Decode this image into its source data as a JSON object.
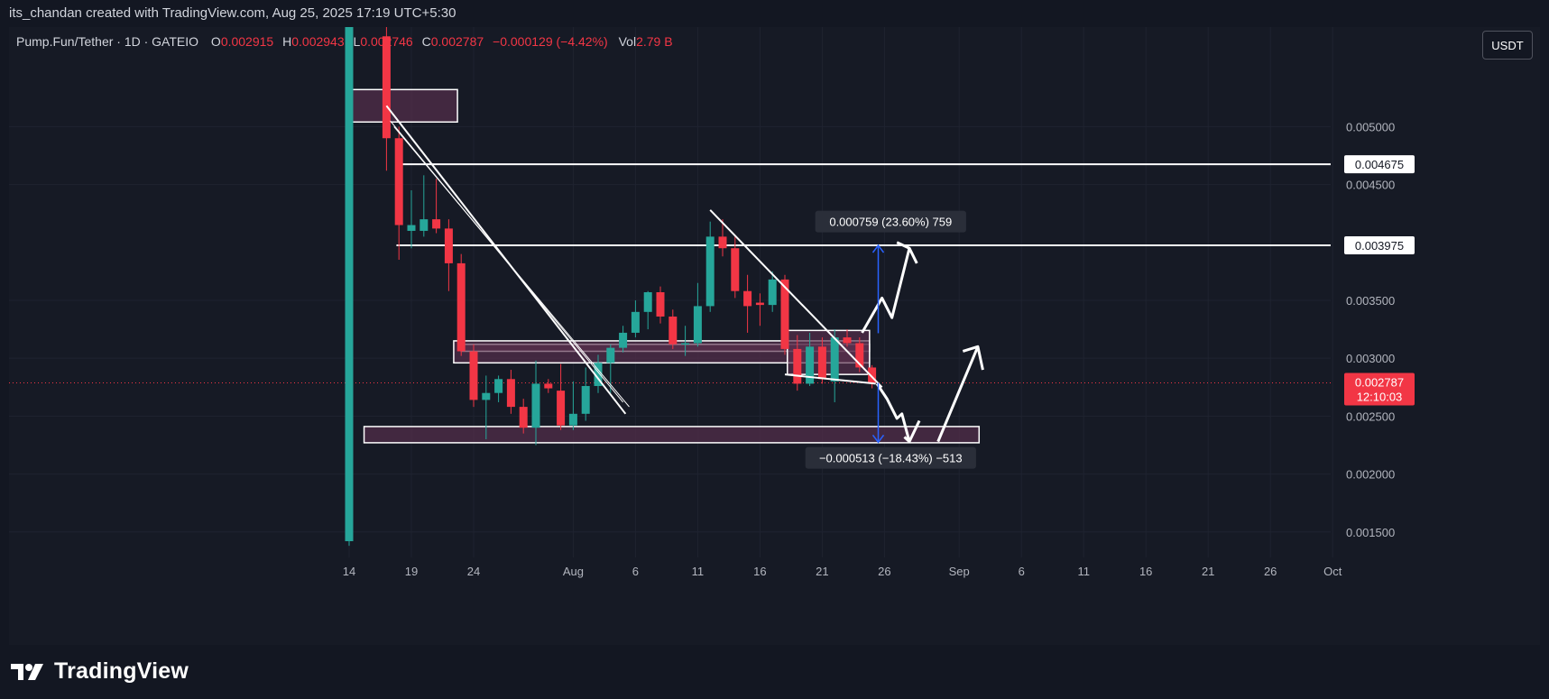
{
  "header": {
    "credit": "its_chandan created with TradingView.com, Aug 25, 2025 17:19 UTC+5:30"
  },
  "legend": {
    "symbol": "Pump.Fun/Tether · 1D · GATEIO",
    "o_label": "O",
    "o_value": "0.002915",
    "h_label": "H",
    "h_value": "0.002943",
    "l_label": "L",
    "l_value": "0.002746",
    "c_label": "C",
    "c_value": "0.002787",
    "change": "−0.000129 (−4.42%)",
    "vol_label": "Vol",
    "vol_value": "2.79 B"
  },
  "currency_button": "USDT",
  "brand": "TradingView",
  "colors": {
    "up": "#26a69a",
    "down": "#f23645",
    "zone": "#5b2f4f",
    "line": "#ffffff",
    "measure": "#2962ff"
  },
  "chart_data": {
    "type": "candlestick",
    "x_ticks": [
      {
        "day": 0,
        "label": "14"
      },
      {
        "day": 5,
        "label": "19"
      },
      {
        "day": 10,
        "label": "24"
      },
      {
        "day": 18,
        "label": "Aug"
      },
      {
        "day": 23,
        "label": "6"
      },
      {
        "day": 28,
        "label": "11"
      },
      {
        "day": 33,
        "label": "16"
      },
      {
        "day": 38,
        "label": "21"
      },
      {
        "day": 43,
        "label": "26"
      },
      {
        "day": 49,
        "label": "Sep"
      },
      {
        "day": 54,
        "label": "6"
      },
      {
        "day": 59,
        "label": "11"
      },
      {
        "day": 64,
        "label": "16"
      },
      {
        "day": 69,
        "label": "21"
      },
      {
        "day": 74,
        "label": "26"
      },
      {
        "day": 79,
        "label": "Oct"
      }
    ],
    "y_ticks": [
      "0.005000",
      "0.004500",
      "0.003500",
      "0.003000",
      "0.002500",
      "0.002000",
      "0.001500"
    ],
    "y_tick_values": [
      0.005,
      0.0045,
      0.0035,
      0.003,
      0.0025,
      0.002,
      0.0015
    ],
    "ylim": [
      0.00128,
      0.00586
    ],
    "candles": [
      {
        "day": 0,
        "o": 0.00142,
        "h": 0.006,
        "l": 0.00138,
        "c": 0.006
      },
      {
        "day": 3,
        "o": 0.00578,
        "h": 0.00586,
        "l": 0.00462,
        "c": 0.0049
      },
      {
        "day": 4,
        "o": 0.0049,
        "h": 0.005,
        "l": 0.00385,
        "c": 0.00415
      },
      {
        "day": 5,
        "o": 0.0041,
        "h": 0.00445,
        "l": 0.00395,
        "c": 0.00415
      },
      {
        "day": 6,
        "o": 0.0041,
        "h": 0.00458,
        "l": 0.00405,
        "c": 0.0042
      },
      {
        "day": 7,
        "o": 0.0042,
        "h": 0.00455,
        "l": 0.00408,
        "c": 0.00412
      },
      {
        "day": 8,
        "o": 0.00412,
        "h": 0.0042,
        "l": 0.00358,
        "c": 0.00382
      },
      {
        "day": 9,
        "o": 0.00382,
        "h": 0.0039,
        "l": 0.00302,
        "c": 0.00306
      },
      {
        "day": 10,
        "o": 0.00306,
        "h": 0.00312,
        "l": 0.00258,
        "c": 0.00264
      },
      {
        "day": 11,
        "o": 0.00264,
        "h": 0.00285,
        "l": 0.0023,
        "c": 0.0027
      },
      {
        "day": 12,
        "o": 0.0027,
        "h": 0.00285,
        "l": 0.00262,
        "c": 0.00282
      },
      {
        "day": 13,
        "o": 0.00282,
        "h": 0.0029,
        "l": 0.00252,
        "c": 0.00258
      },
      {
        "day": 14,
        "o": 0.00258,
        "h": 0.00265,
        "l": 0.00235,
        "c": 0.0024
      },
      {
        "day": 15,
        "o": 0.0024,
        "h": 0.00298,
        "l": 0.00225,
        "c": 0.00278
      },
      {
        "day": 16,
        "o": 0.00278,
        "h": 0.00282,
        "l": 0.0027,
        "c": 0.00274
      },
      {
        "day": 17,
        "o": 0.00272,
        "h": 0.00295,
        "l": 0.00238,
        "c": 0.00242
      },
      {
        "day": 18,
        "o": 0.00242,
        "h": 0.0028,
        "l": 0.00238,
        "c": 0.00252
      },
      {
        "day": 19,
        "o": 0.00252,
        "h": 0.00292,
        "l": 0.00246,
        "c": 0.00276
      },
      {
        "day": 20,
        "o": 0.00276,
        "h": 0.00303,
        "l": 0.0027,
        "c": 0.00296
      },
      {
        "day": 21,
        "o": 0.00296,
        "h": 0.00312,
        "l": 0.0027,
        "c": 0.00309
      },
      {
        "day": 22,
        "o": 0.00309,
        "h": 0.00328,
        "l": 0.00305,
        "c": 0.00322
      },
      {
        "day": 23,
        "o": 0.00322,
        "h": 0.0035,
        "l": 0.00318,
        "c": 0.0034
      },
      {
        "day": 24,
        "o": 0.0034,
        "h": 0.00358,
        "l": 0.00325,
        "c": 0.00357
      },
      {
        "day": 25,
        "o": 0.00357,
        "h": 0.00362,
        "l": 0.0033,
        "c": 0.00336
      },
      {
        "day": 26,
        "o": 0.00336,
        "h": 0.00342,
        "l": 0.00308,
        "c": 0.00312
      },
      {
        "day": 27,
        "o": 0.00312,
        "h": 0.00328,
        "l": 0.00302,
        "c": 0.00313
      },
      {
        "day": 28,
        "o": 0.00313,
        "h": 0.00365,
        "l": 0.0031,
        "c": 0.00345
      },
      {
        "day": 29,
        "o": 0.00345,
        "h": 0.00418,
        "l": 0.0034,
        "c": 0.00405
      },
      {
        "day": 30,
        "o": 0.00405,
        "h": 0.0042,
        "l": 0.00388,
        "c": 0.00395
      },
      {
        "day": 31,
        "o": 0.00395,
        "h": 0.00405,
        "l": 0.00352,
        "c": 0.00358
      },
      {
        "day": 32,
        "o": 0.00358,
        "h": 0.00372,
        "l": 0.00322,
        "c": 0.00345
      },
      {
        "day": 33,
        "o": 0.00348,
        "h": 0.00356,
        "l": 0.00328,
        "c": 0.00346
      },
      {
        "day": 34,
        "o": 0.00346,
        "h": 0.00375,
        "l": 0.0034,
        "c": 0.00368
      },
      {
        "day": 35,
        "o": 0.00368,
        "h": 0.00372,
        "l": 0.00303,
        "c": 0.00308
      },
      {
        "day": 36,
        "o": 0.00308,
        "h": 0.0032,
        "l": 0.00272,
        "c": 0.00278
      },
      {
        "day": 37,
        "o": 0.00278,
        "h": 0.00322,
        "l": 0.00276,
        "c": 0.0031
      },
      {
        "day": 38,
        "o": 0.0031,
        "h": 0.00318,
        "l": 0.00278,
        "c": 0.00282
      },
      {
        "day": 39,
        "o": 0.0028,
        "h": 0.00325,
        "l": 0.00262,
        "c": 0.00318
      },
      {
        "day": 40,
        "o": 0.00318,
        "h": 0.00325,
        "l": 0.0031,
        "c": 0.00313
      },
      {
        "day": 41,
        "o": 0.00313,
        "h": 0.00318,
        "l": 0.00288,
        "c": 0.00292
      },
      {
        "day": 42,
        "o": 0.00292,
        "h": 0.00294,
        "l": 0.00274,
        "c": 0.00279
      }
    ],
    "zones": [
      {
        "d0": -0.2,
        "d1": 8.7,
        "p0": 0.00504,
        "p1": 0.00532
      },
      {
        "d0": 9.0,
        "d1": 41.8,
        "p0": 0.00312,
        "p1": 0.00306
      },
      {
        "d0": 8.4,
        "d1": 41.8,
        "p0": 0.00315,
        "p1": 0.00296
      },
      {
        "d0": 35.2,
        "d1": 41.8,
        "p0": 0.00324,
        "p1": 0.00286
      },
      {
        "d0": 1.2,
        "d1": 50.6,
        "p0": 0.00241,
        "p1": 0.00227
      }
    ],
    "horizontal_levels": [
      {
        "day_start": 3.8,
        "price": 0.004675,
        "label": "0.004675"
      },
      {
        "day_start": 3.8,
        "price": 0.003975,
        "label": "0.003975"
      }
    ],
    "current_price": {
      "price": 0.002787,
      "label": "0.002787",
      "countdown": "12:10:03"
    },
    "measurements": [
      {
        "day": 42.5,
        "p_from": 0.003216,
        "p_to": 0.003975,
        "label": "0.000759 (23.60%) 759",
        "label_day": 43.5,
        "label_price": 0.00418
      },
      {
        "day": 42.5,
        "p_from": 0.002787,
        "p_to": 0.002274,
        "label": "−0.000513 (−18.43%) −513",
        "label_day": 43.5,
        "label_price": 0.00214
      }
    ]
  }
}
